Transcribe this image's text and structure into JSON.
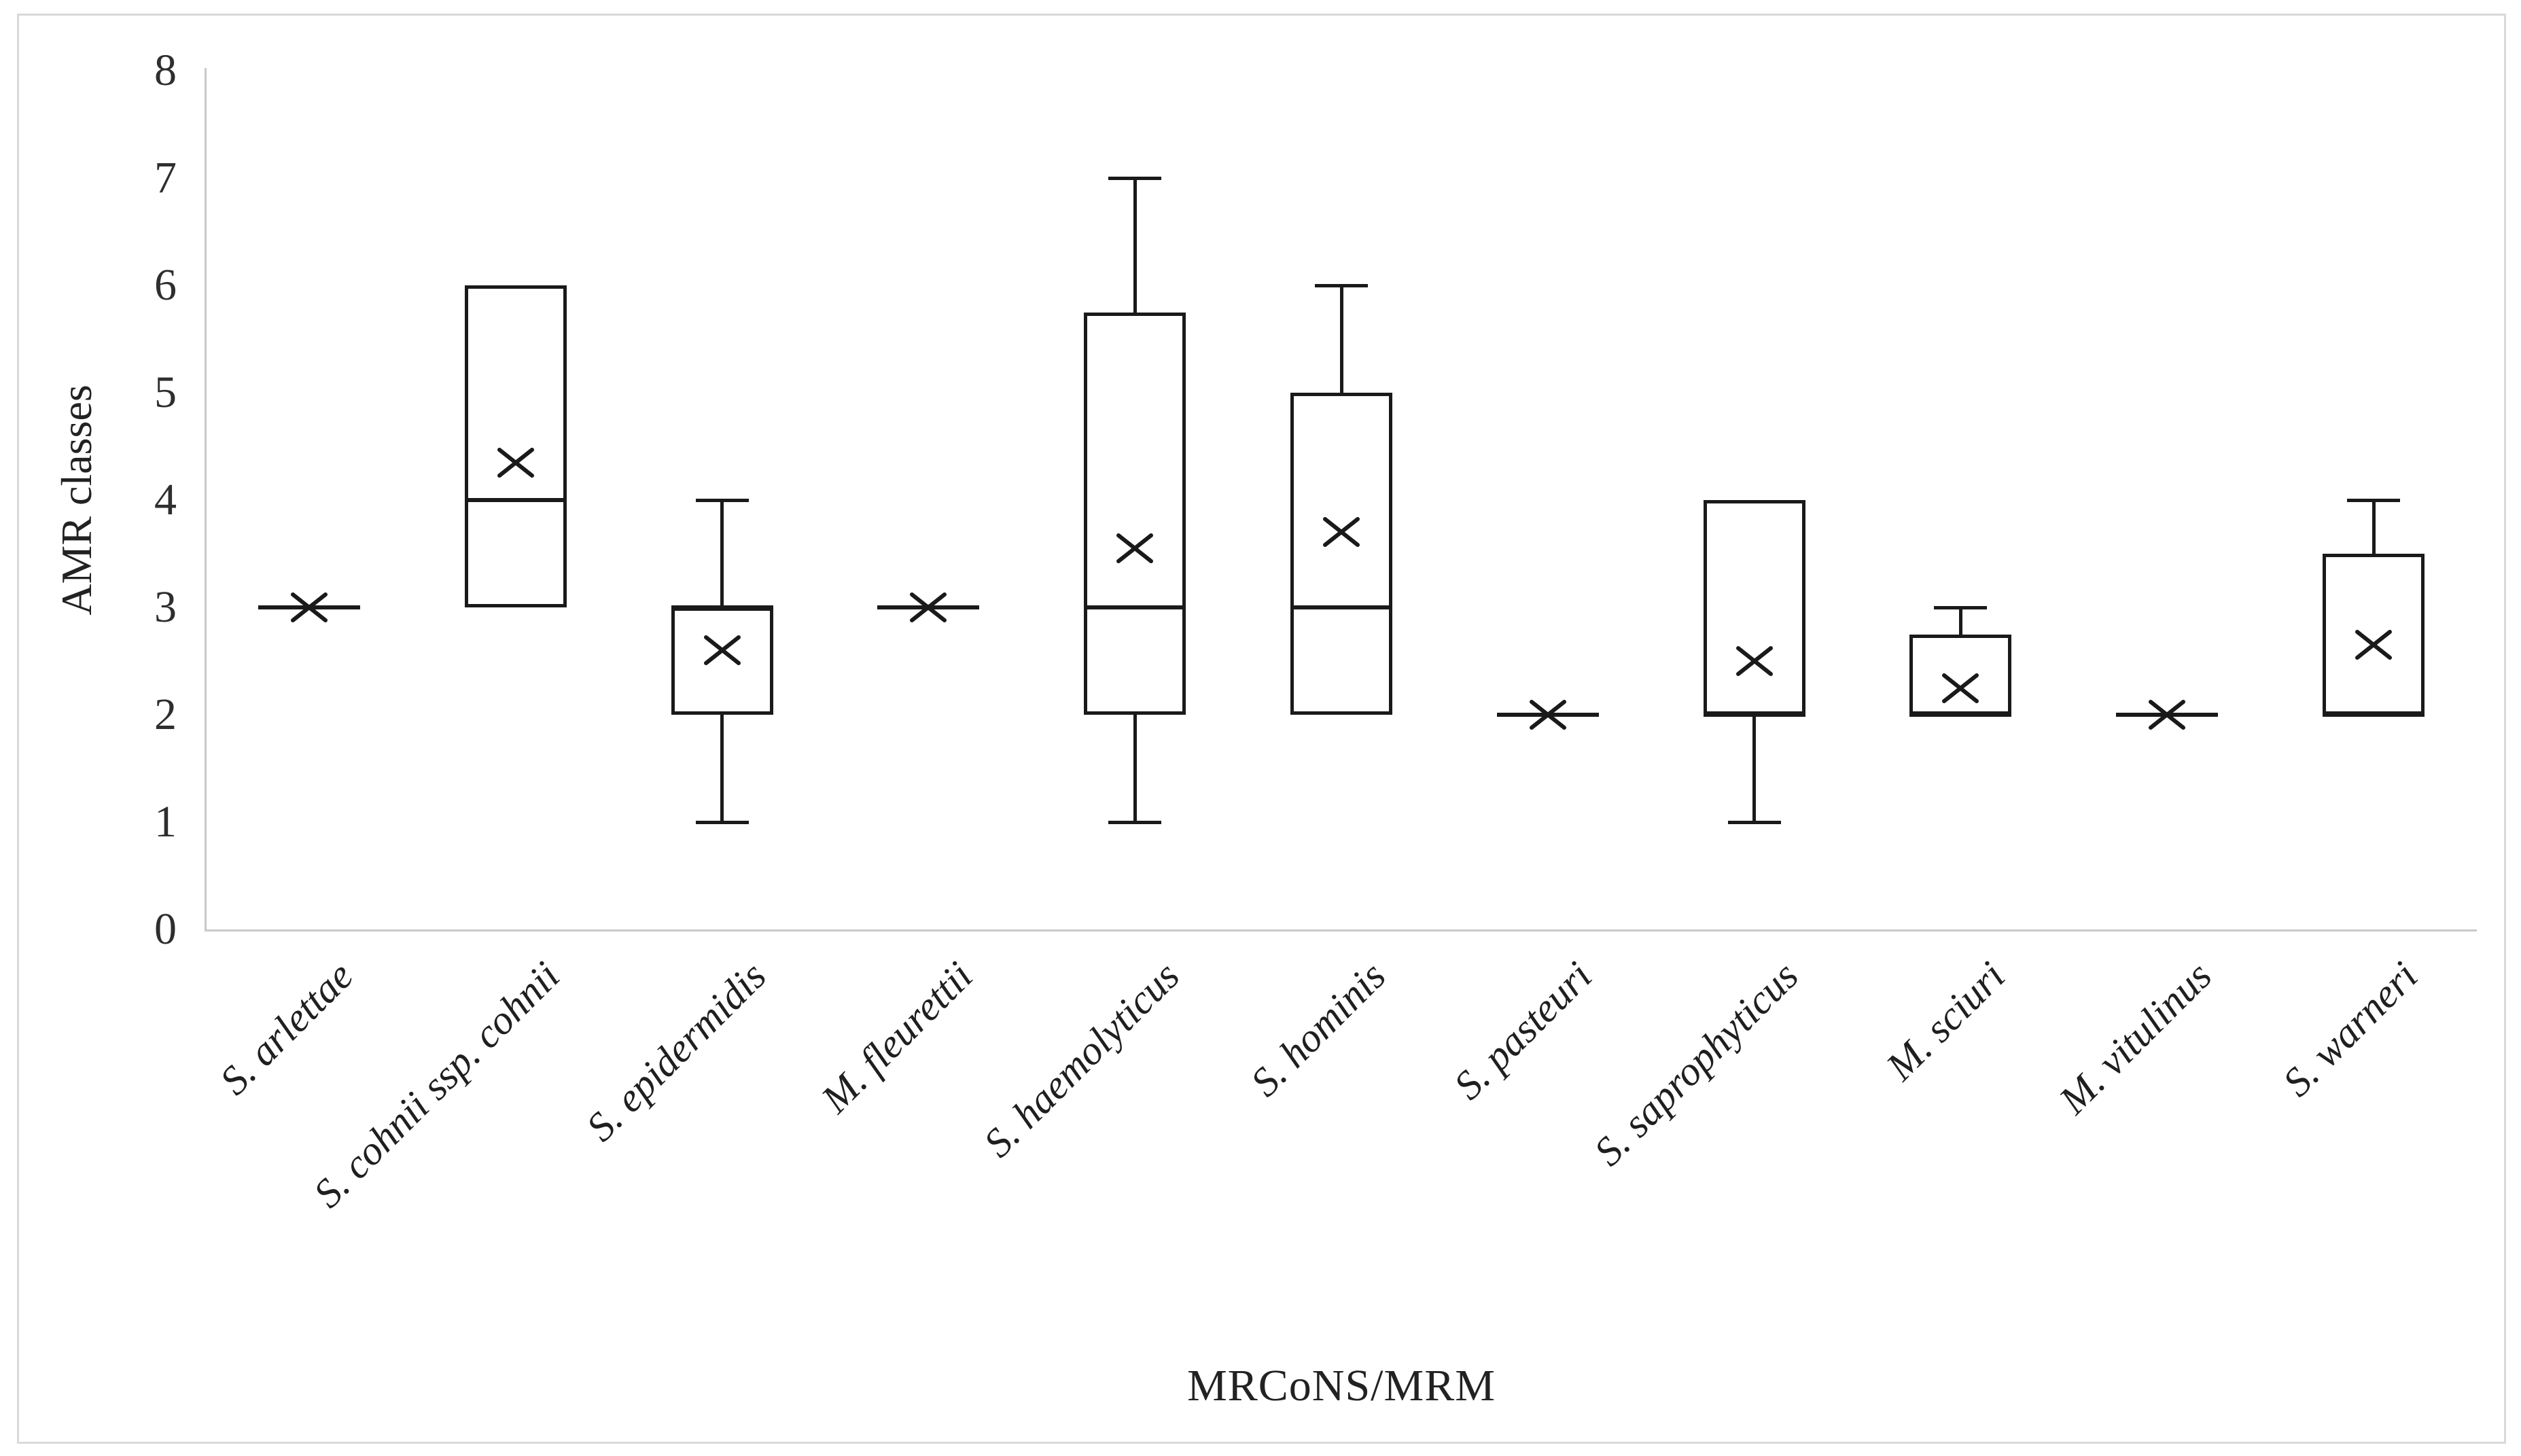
{
  "chart_data": {
    "type": "boxplot",
    "title": "",
    "xlabel": "MRCoNS/MRM",
    "ylabel": "AMR classes",
    "ylim": [
      0,
      8
    ],
    "yticks": [
      0,
      1,
      2,
      3,
      4,
      5,
      6,
      7,
      8
    ],
    "grid": false,
    "legend": false,
    "mean_marker": "x",
    "categories": [
      "S. arlettae",
      "S. cohnii ssp. cohnii",
      "S. epidermidis",
      "M. fleurettii",
      "S. haemolyticus",
      "S. hominis",
      "S. pasteuri",
      "S. saprophyticus",
      "M. sciuri",
      "M. vitulinus",
      "S. warneri"
    ],
    "boxes": [
      {
        "category": "S. arlettae",
        "min": 3,
        "q1": 3,
        "median": 3,
        "q3": 3,
        "max": 3,
        "mean": 3
      },
      {
        "category": "S. cohnii ssp. cohnii",
        "min": 3,
        "q1": 3,
        "median": 4,
        "q3": 6,
        "max": 6,
        "mean": 4.35
      },
      {
        "category": "S. epidermidis",
        "min": 1,
        "q1": 2,
        "median": 3,
        "q3": 3,
        "max": 4,
        "mean": 2.6
      },
      {
        "category": "M. fleurettii",
        "min": 3,
        "q1": 3,
        "median": 3,
        "q3": 3,
        "max": 3,
        "mean": 3
      },
      {
        "category": "S. haemolyticus",
        "min": 1,
        "q1": 2,
        "median": 3,
        "q3": 5.75,
        "max": 7,
        "mean": 3.55
      },
      {
        "category": "S. hominis",
        "min": 2,
        "q1": 2,
        "median": 3,
        "q3": 5,
        "max": 6,
        "mean": 3.7
      },
      {
        "category": "S. pasteuri",
        "min": 2,
        "q1": 2,
        "median": 2,
        "q3": 2,
        "max": 2,
        "mean": 2
      },
      {
        "category": "S. saprophyticus",
        "min": 1,
        "q1": 2,
        "median": 2,
        "q3": 4,
        "max": 4,
        "mean": 2.5
      },
      {
        "category": "M. sciuri",
        "min": 2,
        "q1": 2,
        "median": 2,
        "q3": 2.75,
        "max": 3,
        "mean": 2.25
      },
      {
        "category": "M. vitulinus",
        "min": 2,
        "q1": 2,
        "median": 2,
        "q3": 2,
        "max": 2,
        "mean": 2
      },
      {
        "category": "S. warneri",
        "min": 2,
        "q1": 2,
        "median": 2,
        "q3": 3.5,
        "max": 4,
        "mean": 2.65
      }
    ],
    "style": {
      "line_color": "#1a1a1a",
      "axis_color": "#c9c9c9",
      "frame_color": "#d9d9d9",
      "text_color": "#2e2e2e",
      "background": "#ffffff"
    }
  }
}
